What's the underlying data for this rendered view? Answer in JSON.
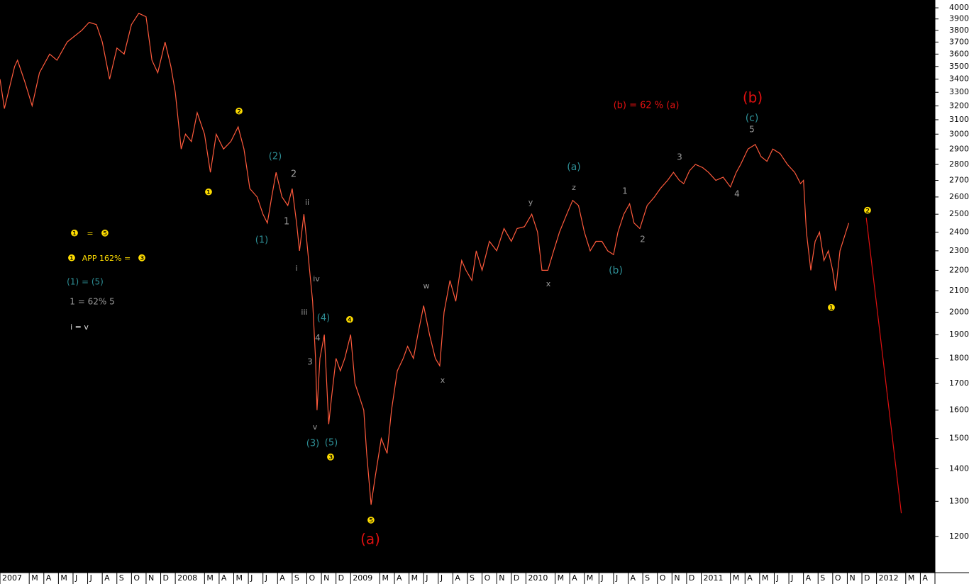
{
  "chart_data": {
    "type": "line",
    "log_scale": true,
    "ylim": [
      1105,
      4072
    ],
    "yticks": [
      1200,
      1300,
      1400,
      1500,
      1600,
      1700,
      1800,
      1900,
      2000,
      2100,
      2200,
      2300,
      2400,
      2500,
      2600,
      2700,
      2800,
      2900,
      3000,
      3100,
      3200,
      3300,
      3400,
      3500,
      3600,
      3700,
      3800,
      3900,
      4000
    ],
    "xlim": [
      0,
      64
    ],
    "xticks": [
      {
        "value": 0,
        "label": "2007"
      },
      {
        "value": 2,
        "label": "M"
      },
      {
        "value": 3,
        "label": "A"
      },
      {
        "value": 4,
        "label": "M"
      },
      {
        "value": 5,
        "label": "J"
      },
      {
        "value": 6,
        "label": "J"
      },
      {
        "value": 7,
        "label": "A"
      },
      {
        "value": 8,
        "label": "S"
      },
      {
        "value": 9,
        "label": "O"
      },
      {
        "value": 10,
        "label": "N"
      },
      {
        "value": 11,
        "label": "D"
      },
      {
        "value": 12,
        "label": "2008"
      },
      {
        "value": 14,
        "label": "M"
      },
      {
        "value": 15,
        "label": "A"
      },
      {
        "value": 16,
        "label": "M"
      },
      {
        "value": 17,
        "label": "J"
      },
      {
        "value": 18,
        "label": "J"
      },
      {
        "value": 19,
        "label": "A"
      },
      {
        "value": 20,
        "label": "S"
      },
      {
        "value": 21,
        "label": "O"
      },
      {
        "value": 22,
        "label": "N"
      },
      {
        "value": 23,
        "label": "D"
      },
      {
        "value": 24,
        "label": "2009"
      },
      {
        "value": 26,
        "label": "M"
      },
      {
        "value": 27,
        "label": "A"
      },
      {
        "value": 28,
        "label": "M"
      },
      {
        "value": 29,
        "label": "J"
      },
      {
        "value": 30,
        "label": "J"
      },
      {
        "value": 31,
        "label": "A"
      },
      {
        "value": 32,
        "label": "S"
      },
      {
        "value": 33,
        "label": "O"
      },
      {
        "value": 34,
        "label": "N"
      },
      {
        "value": 35,
        "label": "D"
      },
      {
        "value": 36,
        "label": "2010"
      },
      {
        "value": 38,
        "label": "M"
      },
      {
        "value": 39,
        "label": "A"
      },
      {
        "value": 40,
        "label": "M"
      },
      {
        "value": 41,
        "label": "J"
      },
      {
        "value": 42,
        "label": "J"
      },
      {
        "value": 43,
        "label": "A"
      },
      {
        "value": 44,
        "label": "S"
      },
      {
        "value": 45,
        "label": "O"
      },
      {
        "value": 46,
        "label": "N"
      },
      {
        "value": 47,
        "label": "D"
      },
      {
        "value": 48,
        "label": "2011"
      },
      {
        "value": 50,
        "label": "M"
      },
      {
        "value": 51,
        "label": "A"
      },
      {
        "value": 52,
        "label": "M"
      },
      {
        "value": 53,
        "label": "J"
      },
      {
        "value": 54,
        "label": "J"
      },
      {
        "value": 55,
        "label": "A"
      },
      {
        "value": 56,
        "label": "S"
      },
      {
        "value": 57,
        "label": "O"
      },
      {
        "value": 58,
        "label": "N"
      },
      {
        "value": 59,
        "label": "D"
      },
      {
        "value": 60,
        "label": "2012"
      },
      {
        "value": 62,
        "label": "M"
      },
      {
        "value": 63,
        "label": "A"
      }
    ],
    "series": [
      {
        "color": "#ff5a3c",
        "x": [
          0,
          0.3,
          1.0,
          1.2,
          1.7,
          2.2,
          2.7,
          3.4,
          3.9,
          4.6,
          5.1,
          5.6,
          6.1,
          6.6,
          7.0,
          7.5,
          8.0,
          8.5,
          9.0,
          9.5,
          10.0,
          10.4,
          10.8,
          11.3,
          11.7,
          12.0,
          12.4,
          12.7,
          13.1,
          13.5,
          14.0,
          14.4,
          14.8,
          15.3,
          15.8,
          16.3,
          16.7,
          17.1,
          17.6,
          18.0,
          18.3,
          18.6,
          18.9,
          19.3,
          19.7,
          20.0,
          20.3,
          20.5,
          20.8,
          21.0,
          21.4,
          21.6,
          21.7,
          21.9,
          22.2,
          22.5,
          22.7,
          23.0,
          23.3,
          23.6,
          24.0,
          24.3,
          24.6,
          24.9,
          25.1,
          25.4,
          25.7,
          26.1,
          26.5,
          26.8,
          27.2,
          27.6,
          27.9,
          28.3,
          28.6,
          29.0,
          29.4,
          29.8,
          30.1,
          30.4,
          30.8,
          31.2,
          31.6,
          31.9,
          32.3,
          32.6,
          33.0,
          33.5,
          34.0,
          34.5,
          35.0,
          35.4,
          35.9,
          36.4,
          36.8,
          37.1,
          37.5,
          37.9,
          38.3,
          38.8,
          39.2,
          39.6,
          40.0,
          40.4,
          40.8,
          41.2,
          41.6,
          42.0,
          42.3,
          42.7,
          43.1,
          43.4,
          43.8,
          44.3,
          44.8,
          45.2,
          45.7,
          46.1,
          46.5,
          46.8,
          47.2,
          47.6,
          48.1,
          48.5,
          49.0,
          49.5,
          50.0,
          50.4,
          50.7,
          51.2,
          51.7,
          52.1,
          52.5,
          52.9,
          53.4,
          53.9,
          54.4,
          54.8,
          55.0,
          55.2,
          55.5,
          55.8,
          56.1,
          56.4,
          56.7,
          57.0,
          57.2,
          57.5,
          57.9,
          58.1
        ],
        "values": [
          3400,
          3180,
          3500,
          3550,
          3380,
          3200,
          3450,
          3600,
          3550,
          3700,
          3750,
          3800,
          3870,
          3850,
          3700,
          3400,
          3650,
          3600,
          3850,
          3950,
          3920,
          3550,
          3450,
          3700,
          3500,
          3300,
          2900,
          3000,
          2950,
          3150,
          3000,
          2750,
          3000,
          2900,
          2950,
          3050,
          2900,
          2650,
          2600,
          2500,
          2450,
          2600,
          2750,
          2600,
          2550,
          2650,
          2450,
          2300,
          2500,
          2350,
          2050,
          1800,
          1600,
          1800,
          1900,
          1550,
          1650,
          1800,
          1750,
          1800,
          1900,
          1700,
          1650,
          1600,
          1450,
          1290,
          1380,
          1500,
          1450,
          1600,
          1750,
          1800,
          1850,
          1800,
          1900,
          2030,
          1900,
          1800,
          1770,
          2000,
          2150,
          2050,
          2250,
          2200,
          2150,
          2300,
          2200,
          2350,
          2300,
          2420,
          2350,
          2420,
          2430,
          2500,
          2400,
          2200,
          2200,
          2300,
          2400,
          2500,
          2580,
          2550,
          2400,
          2300,
          2350,
          2350,
          2300,
          2280,
          2400,
          2500,
          2560,
          2450,
          2420,
          2550,
          2600,
          2650,
          2700,
          2750,
          2700,
          2680,
          2760,
          2800,
          2780,
          2750,
          2700,
          2720,
          2660,
          2750,
          2800,
          2900,
          2930,
          2850,
          2820,
          2900,
          2870,
          2800,
          2750,
          2680,
          2700,
          2400,
          2200,
          2350,
          2400,
          2250,
          2300,
          2200,
          2100,
          2300,
          2400,
          2450
        ]
      },
      {
        "color": "#e01010",
        "x": [
          59.3,
          61.7
        ],
        "values": [
          2480,
          1265
        ]
      }
    ],
    "annotations": [
      {
        "text": "❶",
        "color": "#ffdd00"
      },
      {
        "text": "❷",
        "color": "#ffdd00"
      },
      {
        "text": "❸",
        "color": "#ffdd00"
      },
      {
        "text": "❹",
        "color": "#ffdd00"
      },
      {
        "text": "❺",
        "color": "#ffdd00"
      },
      {
        "text": "❶",
        "color": "#ffdd00"
      },
      {
        "text": "❷",
        "color": "#ffdd00"
      },
      {
        "text": "❶",
        "color": "#ffdd00"
      },
      {
        "text": "=",
        "color": "#ffdd00"
      },
      {
        "text": "❺",
        "color": "#ffdd00"
      },
      {
        "text": "❶",
        "color": "#ffdd00"
      },
      {
        "text": "APP 162% =",
        "color": "#ffdd00"
      },
      {
        "text": "❸",
        "color": "#ffdd00"
      },
      {
        "text": "(1) = (5)",
        "color": "#2e8f96"
      },
      {
        "text": "1 = 62% 5",
        "color": "#9a9a9a"
      },
      {
        "text": "i = v",
        "color": "#dddddd"
      },
      {
        "text": "(2)",
        "color": "#2e8f96"
      },
      {
        "text": "(1)",
        "color": "#2e8f96"
      },
      {
        "text": "(4)",
        "color": "#2e8f96"
      },
      {
        "text": "(3)",
        "color": "#2e8f96"
      },
      {
        "text": "(5)",
        "color": "#2e8f96"
      },
      {
        "text": "(a)",
        "color": "#2e8f96"
      },
      {
        "text": "(b)",
        "color": "#2e8f96"
      },
      {
        "text": "(c)",
        "color": "#2e8f96"
      },
      {
        "text": "2",
        "color": "#9a9a9a"
      },
      {
        "text": "1",
        "color": "#9a9a9a"
      },
      {
        "text": "ii",
        "color": "#9a9a9a"
      },
      {
        "text": "i",
        "color": "#9a9a9a"
      },
      {
        "text": "iv",
        "color": "#9a9a9a"
      },
      {
        "text": "iii",
        "color": "#9a9a9a"
      },
      {
        "text": "4",
        "color": "#9a9a9a"
      },
      {
        "text": "3",
        "color": "#9a9a9a"
      },
      {
        "text": "v",
        "color": "#9a9a9a"
      },
      {
        "text": "w",
        "color": "#9a9a9a"
      },
      {
        "text": "x",
        "color": "#9a9a9a"
      },
      {
        "text": "y",
        "color": "#9a9a9a"
      },
      {
        "text": "z",
        "color": "#9a9a9a"
      },
      {
        "text": "x",
        "color": "#9a9a9a"
      },
      {
        "text": "1",
        "color": "#9a9a9a"
      },
      {
        "text": "2",
        "color": "#9a9a9a"
      },
      {
        "text": "3",
        "color": "#9a9a9a"
      },
      {
        "text": "4",
        "color": "#9a9a9a"
      },
      {
        "text": "5",
        "color": "#9a9a9a"
      },
      {
        "text": "(a)",
        "color": "#e01010"
      },
      {
        "text": "(b)",
        "color": "#e01010"
      },
      {
        "text": "(b) = 62 % (a)",
        "color": "#e01010"
      }
    ]
  }
}
